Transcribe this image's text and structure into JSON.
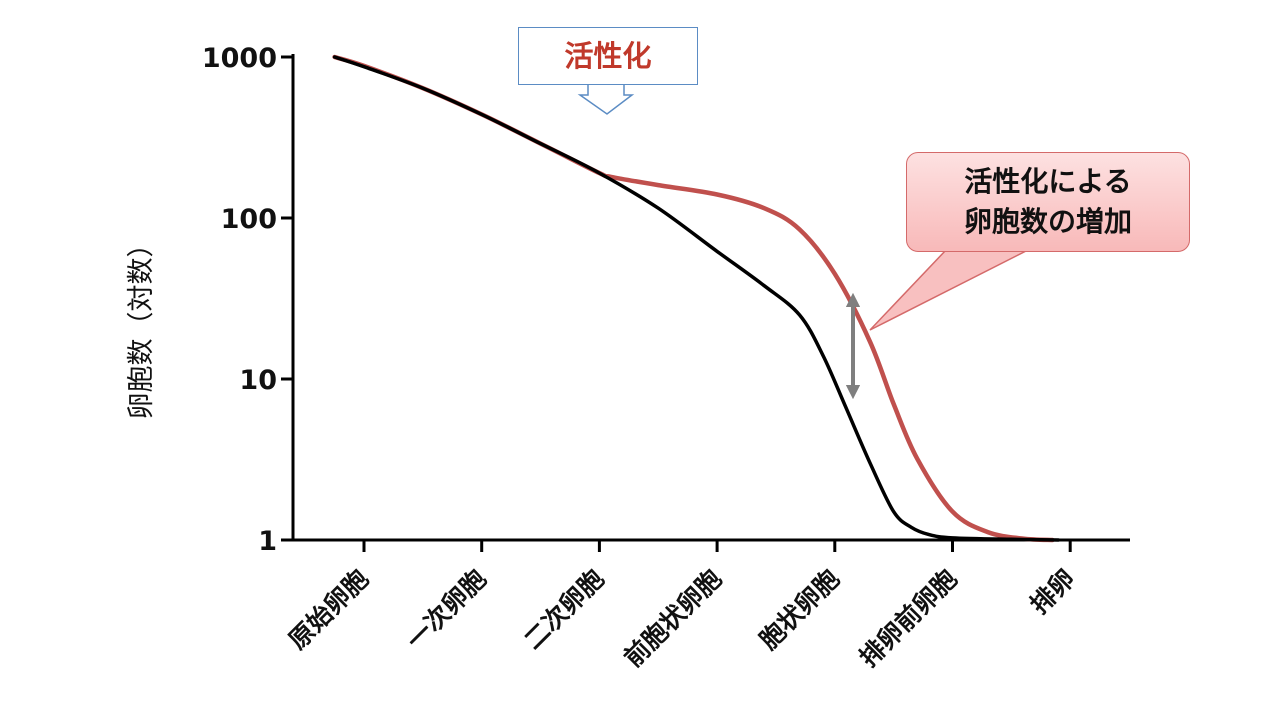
{
  "chart_data": {
    "type": "line",
    "ylabel": "卵胞数（対数）",
    "yscale": "log",
    "ylim": [
      1,
      1000
    ],
    "yticks": [
      1,
      10,
      100,
      1000
    ],
    "ytick_labels": [
      "1",
      "10",
      "100",
      "1000"
    ],
    "categories": [
      "原始卵胞",
      "一次卵胞",
      "二次卵胞",
      "前胞状卵胞",
      "胞状卵胞",
      "排卵前卵胞",
      "排卵"
    ],
    "series": [
      {
        "color": "#000000",
        "x": [
          -0.25,
          0,
          0.5,
          1,
          1.5,
          2,
          2.5,
          3,
          3.4,
          3.7,
          3.9,
          4.1,
          4.3,
          4.5,
          4.65,
          4.8,
          5,
          5.5,
          5.9
        ],
        "y": [
          1000,
          870,
          640,
          440,
          290,
          190,
          115,
          62,
          38,
          25,
          14,
          6.5,
          3,
          1.5,
          1.2,
          1.08,
          1.03,
          1.01,
          1.0
        ]
      },
      {
        "color": "#c0504d",
        "x": [
          -0.25,
          0,
          0.5,
          1,
          1.5,
          2,
          2.1,
          2.5,
          3,
          3.4,
          3.7,
          4,
          4.3,
          4.5,
          4.7,
          5,
          5.3,
          5.6,
          5.85
        ],
        "y": [
          1000,
          880,
          640,
          440,
          290,
          190,
          180,
          160,
          140,
          115,
          85,
          45,
          17,
          7,
          3.2,
          1.5,
          1.12,
          1.02,
          1.0
        ]
      }
    ],
    "annotations": [
      {
        "text": "活性化"
      },
      {
        "text": "活性化による\n卵胞数の増加"
      }
    ]
  },
  "colors": {
    "axis": "#000000",
    "arrow": "#7f7f7f",
    "pointer_fill": "#f8c0c0",
    "pointer_stroke": "#d46a6a"
  }
}
